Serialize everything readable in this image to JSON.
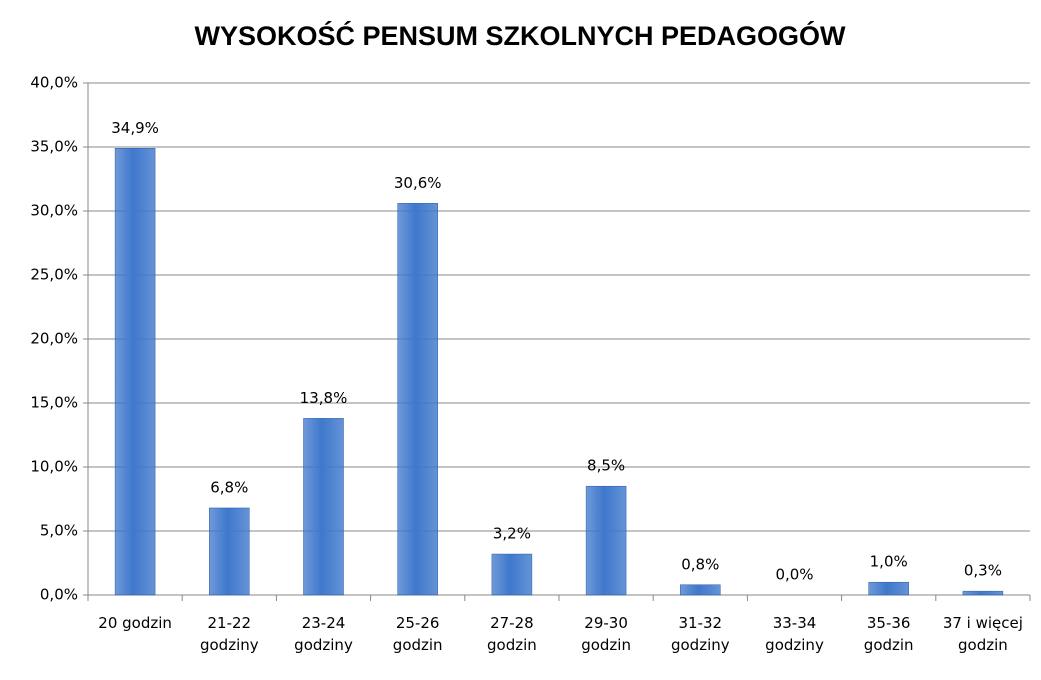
{
  "chart_data": {
    "type": "bar",
    "title": "WYSOKOŚĆ PENSUM SZKOLNYCH PEDAGOGÓW",
    "categories": [
      "20 godzin",
      "21-22 godziny",
      "23-24 godziny",
      "25-26 godzin",
      "27-28 godzin",
      "29-30 godzin",
      "31-32 godziny",
      "33-34 godziny",
      "35-36 godzin",
      "37 i więcej godzin"
    ],
    "values": [
      34.9,
      6.8,
      13.8,
      30.6,
      3.2,
      8.5,
      0.8,
      0.0,
      1.0,
      0.3
    ],
    "value_labels": [
      "34,9%",
      "6,8%",
      "13,8%",
      "30,6%",
      "3,2%",
      "8,5%",
      "0,8%",
      "0,0%",
      "1,0%",
      "0,3%"
    ],
    "color": "#3f78cc",
    "ylim": [
      0,
      40
    ],
    "yticks": [
      {
        "value": 0,
        "label": "0,0%"
      },
      {
        "value": 5,
        "label": "5,0%"
      },
      {
        "value": 10,
        "label": "10,0%"
      },
      {
        "value": 15,
        "label": "15,0%"
      },
      {
        "value": 20,
        "label": "20,0%"
      },
      {
        "value": 25,
        "label": "25,0%"
      },
      {
        "value": 30,
        "label": "30,0%"
      },
      {
        "value": 35,
        "label": "35,0%"
      },
      {
        "value": 40,
        "label": "40,0%"
      }
    ],
    "grid": true
  }
}
